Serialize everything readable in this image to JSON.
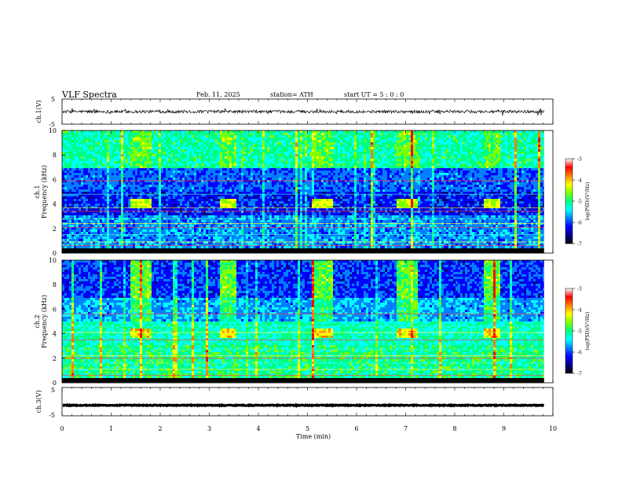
{
  "header": {
    "title": "VLF  Spectra",
    "date": "Feb. 11, 2025",
    "station": "station= ATH",
    "start": "start  UT  =    5  : 0   : 0"
  },
  "chart_data": [
    {
      "type": "line",
      "panel": "ch1-waveform",
      "ylabel": "ch.1(V)",
      "ylim": [
        -5,
        5
      ],
      "xlim": [
        0,
        10
      ],
      "y_ticklabels": [
        "5",
        "-5"
      ],
      "baseline_level": 0,
      "noise_amplitude": 0.6,
      "data_end_min": 9.82
    },
    {
      "type": "heatmap",
      "panel": "ch1-spectrogram",
      "ylabel": "ch.1\nFrequency (kHz)",
      "ylim": [
        0,
        10
      ],
      "xlim": [
        0,
        10
      ],
      "y_ticks": [
        0,
        2,
        4,
        6,
        8,
        10
      ],
      "data_end_min": 9.82,
      "colorbar": {
        "label": "log(PSD)(V²/Hz)",
        "range": [
          -7,
          -3
        ],
        "ticks": [
          -7,
          -6,
          -5,
          -4,
          -3
        ],
        "colormap": [
          "#000000",
          "#00008b",
          "#0000ff",
          "#0080ff",
          "#00ffff",
          "#00ff80",
          "#80ff00",
          "#ffff00",
          "#ff8000",
          "#ff0000",
          "#ffffff"
        ]
      },
      "quiet_bursts_min": [
        [
          1.35,
          1.8
        ],
        [
          3.2,
          3.55
        ],
        [
          5.05,
          5.5
        ],
        [
          6.8,
          7.2
        ],
        [
          8.55,
          8.9
        ]
      ],
      "horizontal_lines_khz": [
        0.6,
        0.9,
        1.5,
        2.1,
        2.4,
        2.8,
        3.4,
        3.7,
        4.8,
        5.9
      ]
    },
    {
      "type": "heatmap",
      "panel": "ch2-spectrogram",
      "ylabel": "ch.2\nFrequency (kHz)",
      "ylim": [
        0,
        10
      ],
      "xlim": [
        0,
        10
      ],
      "y_ticks": [
        0,
        2,
        4,
        6,
        8,
        10
      ],
      "data_end_min": 9.82,
      "colorbar": {
        "label": "log(PSD)(V²/Hz)",
        "range": [
          -7,
          -3
        ],
        "ticks": [
          -7,
          -6,
          -5,
          -4,
          -3
        ],
        "colormap": [
          "#000000",
          "#00008b",
          "#0000ff",
          "#0080ff",
          "#00ffff",
          "#00ff80",
          "#80ff00",
          "#ffff00",
          "#ff8000",
          "#ff0000",
          "#ffffff"
        ]
      },
      "quiet_bursts_min": [
        [
          1.35,
          1.8
        ],
        [
          3.2,
          3.55
        ],
        [
          5.05,
          5.5
        ],
        [
          6.8,
          7.2
        ],
        [
          8.55,
          8.9
        ]
      ],
      "horizontal_lines_khz": [
        0.6,
        1.1,
        1.6,
        2.0,
        2.2,
        2.7,
        3.5,
        4.1,
        4.6,
        5.6
      ]
    },
    {
      "type": "line",
      "panel": "ch3-waveform",
      "ylabel": "ch.3(V)",
      "ylim": [
        -5,
        5
      ],
      "xlim": [
        0,
        10
      ],
      "y_ticklabels": [
        "5",
        "-5"
      ],
      "baseline_level": -1.3,
      "noise_amplitude": 0.15,
      "data_end_min": 9.82
    }
  ],
  "x_axis": {
    "label": "Time  (min)",
    "ticks": [
      "0",
      "1",
      "2",
      "3",
      "4",
      "5",
      "6",
      "7",
      "8",
      "9",
      "10"
    ]
  }
}
